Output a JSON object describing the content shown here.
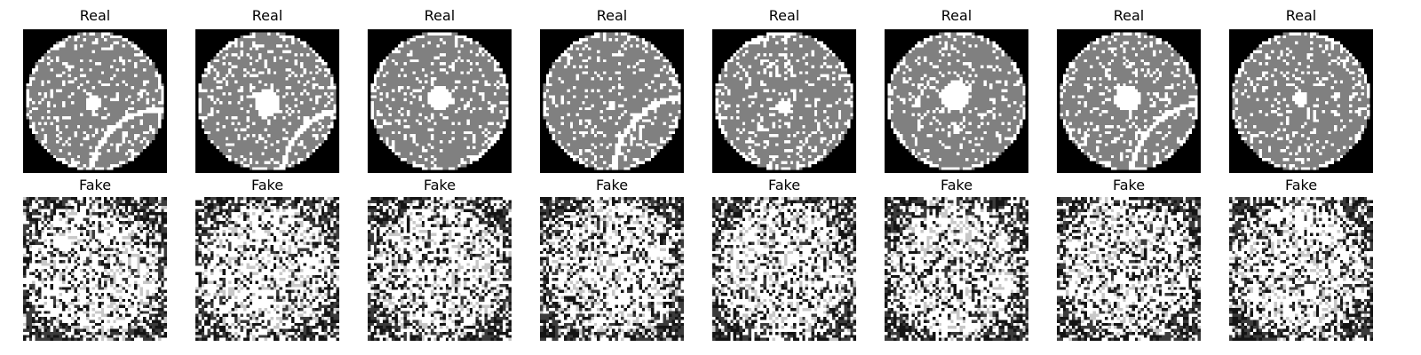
{
  "figure": {
    "real_row": {
      "panels": [
        {
          "title": "Real"
        },
        {
          "title": "Real"
        },
        {
          "title": "Real"
        },
        {
          "title": "Real"
        },
        {
          "title": "Real"
        },
        {
          "title": "Real"
        },
        {
          "title": "Real"
        },
        {
          "title": "Real"
        }
      ]
    },
    "fake_row": {
      "panels": [
        {
          "title": "Fake"
        },
        {
          "title": "Fake"
        },
        {
          "title": "Fake"
        },
        {
          "title": "Fake"
        },
        {
          "title": "Fake"
        },
        {
          "title": "Fake"
        },
        {
          "title": "Fake"
        },
        {
          "title": "Fake"
        }
      ]
    },
    "colors": {
      "background": "#000000",
      "wafer": "#808080",
      "defect": "#ffffff"
    }
  }
}
